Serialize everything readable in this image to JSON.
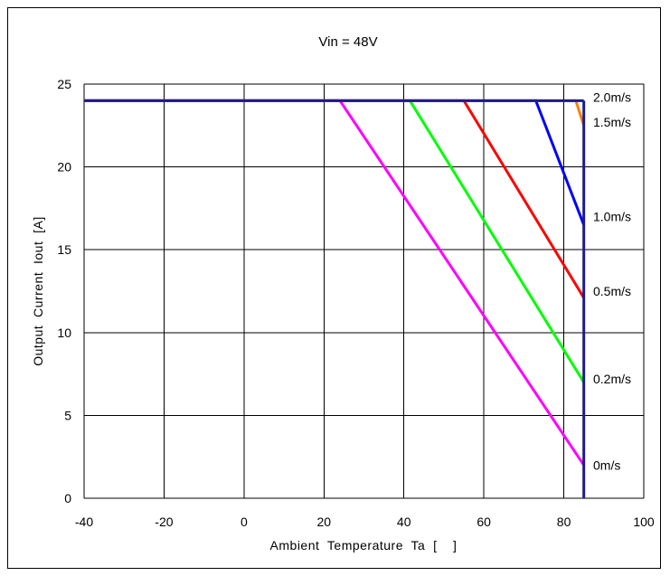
{
  "chart_data": {
    "type": "line",
    "title": "Vin = 48V",
    "xlabel": "Ambient  Temperature  Ta  [    ]",
    "ylabel": "Output  Current  Iout  [A]",
    "xlim": [
      -40,
      100
    ],
    "ylim": [
      0,
      25
    ],
    "xticks": [
      -40,
      -20,
      0,
      20,
      40,
      60,
      80,
      100
    ],
    "yticks": [
      0,
      5,
      10,
      15,
      20,
      25
    ],
    "xtick_labels": [
      "-40",
      "-20",
      "0",
      "20",
      "40",
      "60",
      "80",
      "100"
    ],
    "ytick_labels": [
      "0",
      "5",
      "10",
      "15",
      "20",
      "25"
    ],
    "grid": true,
    "limit_line": {
      "x": 85,
      "color": "#1c1c8c"
    },
    "series": [
      {
        "name": "0m/s",
        "color": "#ff00ff",
        "x": [
          -40,
          24,
          85
        ],
        "y": [
          24,
          24,
          2.0
        ],
        "label_y": 2.0
      },
      {
        "name": "0.2m/s",
        "color": "#00ff00",
        "x": [
          -40,
          41.5,
          85
        ],
        "y": [
          24,
          24,
          7.0
        ],
        "label_y": 7.2
      },
      {
        "name": "0.5m/s",
        "color": "#ff0000",
        "x": [
          -40,
          55,
          85
        ],
        "y": [
          24,
          24,
          12.1
        ],
        "label_y": 12.5
      },
      {
        "name": "1.0m/s",
        "color": "#0000ff",
        "x": [
          -40,
          73,
          85
        ],
        "y": [
          24,
          24,
          16.5
        ],
        "label_y": 17.0
      },
      {
        "name": "1.5m/s",
        "color": "#ff8000",
        "x": [
          -40,
          83,
          85
        ],
        "y": [
          24,
          24,
          22.5
        ],
        "label_y": 22.7
      },
      {
        "name": "2.0m/s",
        "color": "#1c1c8c",
        "x": [
          -40,
          85
        ],
        "y": [
          24,
          24
        ],
        "label_y": 24.2
      }
    ]
  }
}
